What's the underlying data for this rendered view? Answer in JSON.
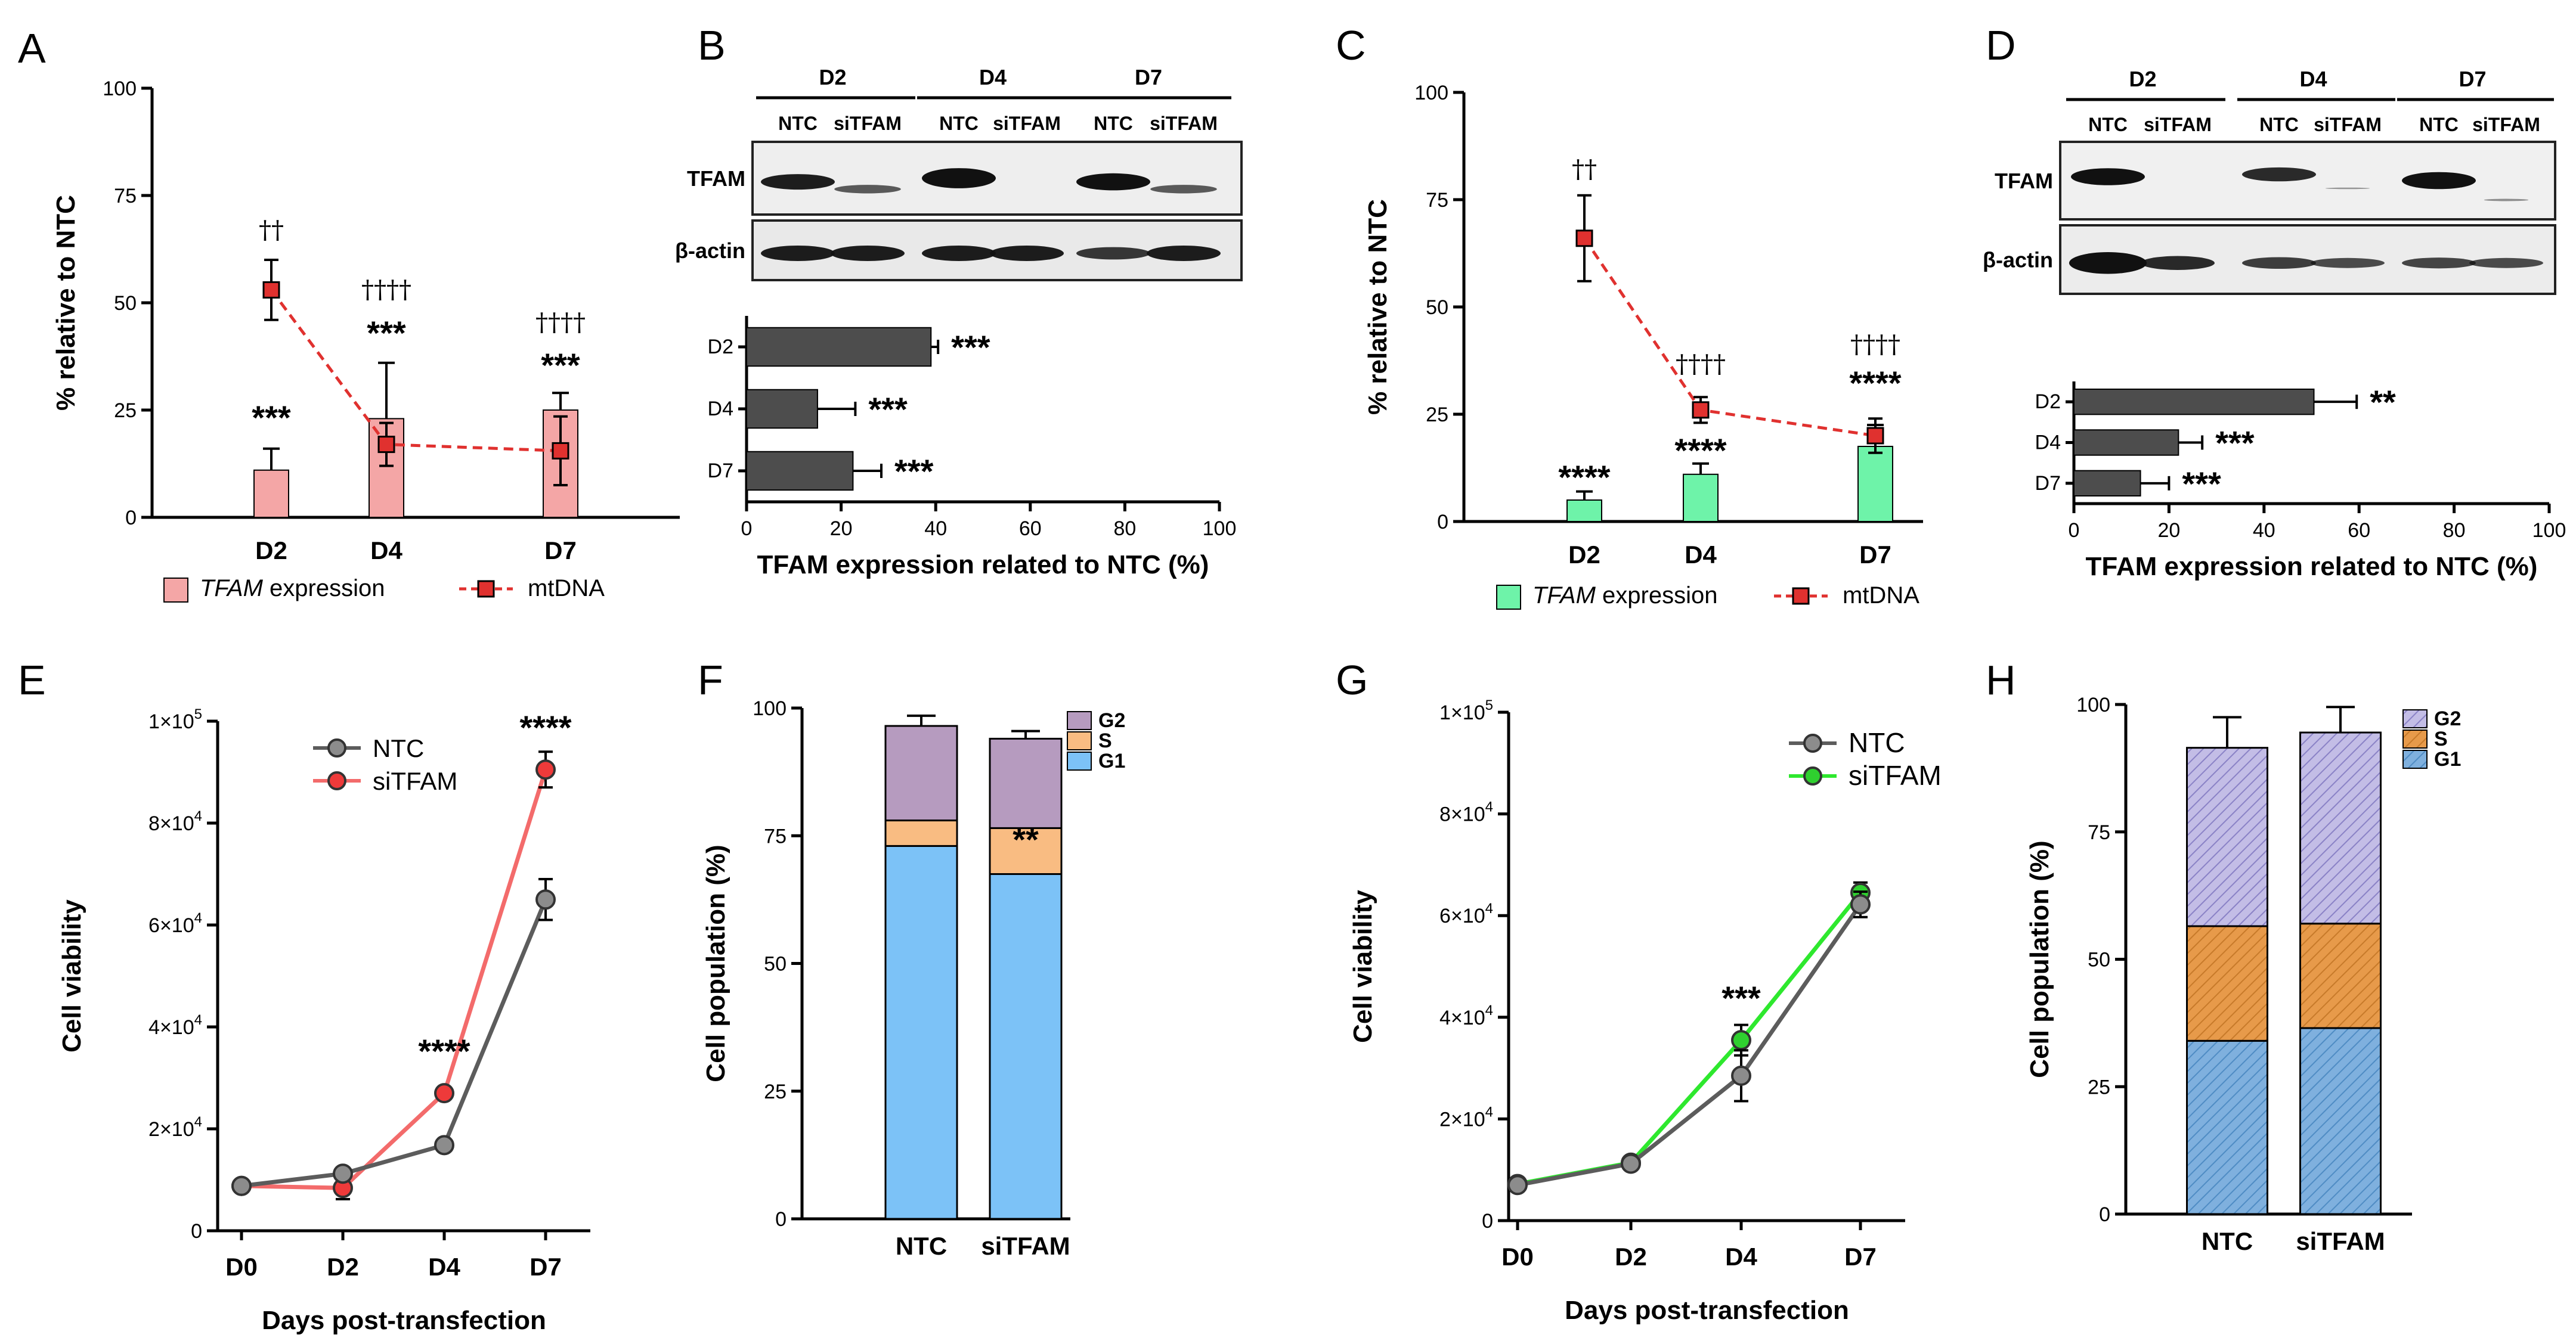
{
  "chart_data": [
    {
      "id": "A",
      "panel_label": "A",
      "type": "bar+line",
      "ylabel": "% relative to NTC",
      "ylim": [
        0,
        100
      ],
      "yticks": [
        "0",
        "25",
        "50",
        "75",
        "100"
      ],
      "categories": [
        "D2",
        "D4",
        "D7"
      ],
      "bars": {
        "name_italic": "TFAM",
        "name_rest": " expression",
        "values": [
          11,
          23,
          25
        ],
        "errors": [
          5,
          13,
          4
        ],
        "stars": [
          "***",
          "***",
          "***"
        ],
        "color": "#f4a6a6"
      },
      "line": {
        "name": "mtDNA",
        "values": [
          53,
          17,
          15.5
        ],
        "errors": [
          7,
          5,
          8
        ],
        "marks": [
          "††",
          "††††",
          "††††"
        ],
        "color": "#e0312f"
      }
    },
    {
      "id": "B",
      "panel_label": "B",
      "type": "blot+hbar",
      "blot": {
        "groups": [
          "D2",
          "D4",
          "D7"
        ],
        "lanes": [
          "NTC",
          "siTFAM",
          "NTC",
          "siTFAM",
          "NTC",
          "siTFAM"
        ],
        "rows": [
          "TFAM",
          "β-actin"
        ]
      },
      "categories": [
        "D2",
        "D4",
        "D7"
      ],
      "values": [
        39,
        15,
        22.5
      ],
      "errors": [
        1.5,
        8,
        6
      ],
      "stars": [
        "***",
        "***",
        "***"
      ],
      "xlabel": "TFAM expression related to NTC (%)",
      "xlim": [
        0,
        100
      ],
      "xticks": [
        "0",
        "20",
        "40",
        "60",
        "80",
        "100"
      ]
    },
    {
      "id": "C",
      "panel_label": "C",
      "type": "bar+line",
      "ylabel": "% relative to NTC",
      "ylim": [
        0,
        100
      ],
      "yticks": [
        "0",
        "25",
        "50",
        "75",
        "100"
      ],
      "categories": [
        "D2",
        "D4",
        "D7"
      ],
      "bars": {
        "name_italic": "TFAM",
        "name_rest": " expression",
        "values": [
          5,
          11,
          17.5
        ],
        "errors": [
          2,
          2.5,
          5
        ],
        "stars": [
          "****",
          "****",
          "****"
        ],
        "color": "#6ef3a9"
      },
      "line": {
        "name": "mtDNA",
        "values": [
          66,
          26,
          20
        ],
        "errors": [
          10,
          3,
          4
        ],
        "marks": [
          "††",
          "††††",
          "††††"
        ],
        "color": "#e0312f"
      }
    },
    {
      "id": "D",
      "panel_label": "D",
      "type": "blot+hbar",
      "blot": {
        "groups": [
          "D2",
          "D4",
          "D7"
        ],
        "lanes": [
          "NTC",
          "siTFAM",
          "NTC",
          "siTFAM",
          "NTC",
          "siTFAM"
        ],
        "rows": [
          "TFAM",
          "β-actin"
        ]
      },
      "categories": [
        "D2",
        "D4",
        "D7"
      ],
      "values": [
        50.5,
        22,
        14
      ],
      "errors": [
        9,
        5,
        6
      ],
      "stars": [
        "**",
        "***",
        "***"
      ],
      "xlabel": "TFAM expression related to NTC (%)",
      "xlim": [
        0,
        100
      ],
      "xticks": [
        "0",
        "20",
        "40",
        "60",
        "80",
        "100"
      ]
    },
    {
      "id": "E",
      "panel_label": "E",
      "type": "line",
      "xlabel": "Days post-transfection",
      "ylabel": "Cell viability",
      "x": [
        "D0",
        "D2",
        "D4",
        "D7"
      ],
      "ylim": [
        0,
        100000
      ],
      "yticks": [
        {
          "m": "0",
          "e": ""
        },
        {
          "m": "2×10",
          "e": "4"
        },
        {
          "m": "4×10",
          "e": "4"
        },
        {
          "m": "6×10",
          "e": "4"
        },
        {
          "m": "8×10",
          "e": "4"
        },
        {
          "m": "1×10",
          "e": "5"
        }
      ],
      "series": [
        {
          "name": "NTC",
          "values": [
            8800,
            11200,
            16800,
            65000
          ],
          "errors": [
            500,
            1200,
            1000,
            4000
          ],
          "color": "#5c5c5c",
          "marker": "#8c8c8c"
        },
        {
          "name": "siTFAM",
          "values": [
            8800,
            8400,
            27000,
            90500
          ],
          "errors": [
            500,
            2200,
            1000,
            3500
          ],
          "color": "#f36b6b",
          "marker": "#ee3a3a"
        }
      ],
      "stars": [
        {
          "x": "D4",
          "text": "****",
          "y": 33000
        },
        {
          "x": "D7",
          "text": "****",
          "y": 96500
        }
      ]
    },
    {
      "id": "F",
      "panel_label": "F",
      "type": "stacked-bar",
      "ylabel": "Cell population (%)",
      "ylim": [
        0,
        100
      ],
      "yticks": [
        "0",
        "25",
        "50",
        "75",
        "100"
      ],
      "categories": [
        "NTC",
        "siTFAM"
      ],
      "series": [
        {
          "name": "G1",
          "values": [
            73,
            67.5
          ],
          "errors": [
            0,
            1.5
          ],
          "color": "#7cc2f7"
        },
        {
          "name": "S",
          "values": [
            5,
            9
          ],
          "errors": [
            1.5,
            1
          ],
          "color": "#f9bc82"
        },
        {
          "name": "G2",
          "values": [
            18.5,
            17.5
          ],
          "errors": [
            2,
            1.5
          ],
          "color": "#b69bbf"
        }
      ],
      "stars": [
        {
          "category": "siTFAM",
          "text": "**",
          "y": 72
        }
      ]
    },
    {
      "id": "G",
      "panel_label": "G",
      "type": "line",
      "xlabel": "Days post-transfection",
      "ylabel": "Cell viability",
      "x": [
        "D0",
        "D2",
        "D4",
        "D7"
      ],
      "ylim": [
        0,
        100000
      ],
      "yticks": [
        {
          "m": "0",
          "e": ""
        },
        {
          "m": "2×10",
          "e": "4"
        },
        {
          "m": "4×10",
          "e": "4"
        },
        {
          "m": "6×10",
          "e": "4"
        },
        {
          "m": "8×10",
          "e": "4"
        },
        {
          "m": "1×10",
          "e": "5"
        }
      ],
      "series": [
        {
          "name": "NTC",
          "values": [
            7000,
            11200,
            28500,
            62200
          ],
          "errors": [
            1200,
            1000,
            5000,
            2500
          ],
          "color": "#5c5c5c",
          "marker": "#8c8c8c"
        },
        {
          "name": "siTFAM",
          "values": [
            7200,
            11400,
            35500,
            64500
          ],
          "errors": [
            1200,
            1000,
            3000,
            2000
          ],
          "color": "#2ee82e",
          "marker": "#2fd02f"
        }
      ],
      "stars": [
        {
          "x": "D4",
          "text": "***",
          "y": 41500
        }
      ]
    },
    {
      "id": "H",
      "panel_label": "H",
      "type": "stacked-bar",
      "ylabel": "Cell population (%)",
      "ylim": [
        0,
        100
      ],
      "yticks": [
        "0",
        "25",
        "50",
        "75",
        "100"
      ],
      "categories": [
        "NTC",
        "siTFAM"
      ],
      "series": [
        {
          "name": "G1",
          "values": [
            34,
            36.5
          ],
          "errors": [
            8,
            1
          ],
          "color": "#7fb0de"
        },
        {
          "name": "S",
          "values": [
            22.5,
            20.5
          ],
          "errors": [
            6.5,
            4
          ],
          "color": "#e79a4a"
        },
        {
          "name": "G2",
          "values": [
            35,
            37.5
          ],
          "errors": [
            6,
            5
          ],
          "color": "#c3bde6"
        }
      ],
      "stars": []
    }
  ]
}
